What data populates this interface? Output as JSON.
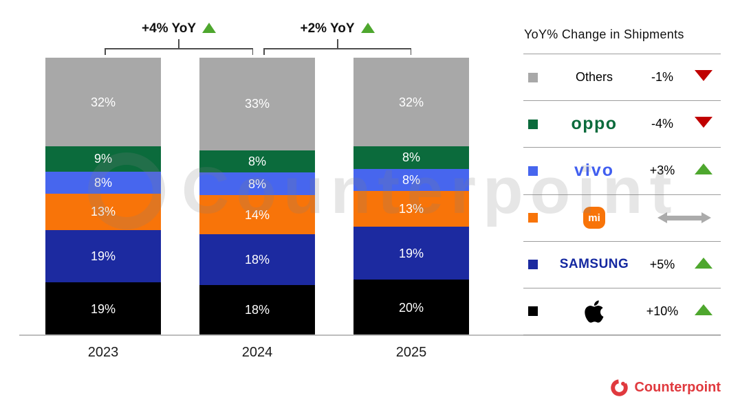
{
  "chart_data": {
    "type": "bar",
    "stacked": true,
    "unit": "%",
    "title": "",
    "categories": [
      "2023",
      "2024",
      "2025"
    ],
    "series_order": "bottom-to-top",
    "series": [
      {
        "name": "Apple",
        "color": "#000000",
        "values": [
          19,
          18,
          20
        ]
      },
      {
        "name": "SAMSUNG",
        "color": "#1c2aa0",
        "values": [
          19,
          18,
          19
        ]
      },
      {
        "name": "Mi",
        "color": "#f87409",
        "values": [
          13,
          14,
          13
        ]
      },
      {
        "name": "vivo",
        "color": "#4766ee",
        "values": [
          8,
          8,
          8
        ]
      },
      {
        "name": "oppo",
        "color": "#0b6b3c",
        "values": [
          9,
          8,
          8
        ]
      },
      {
        "name": "Others",
        "color": "#a8a8a8",
        "values": [
          32,
          33,
          32
        ]
      }
    ],
    "annotations": [
      {
        "label": "+4% YoY",
        "between": [
          "2023",
          "2024"
        ],
        "direction": "up"
      },
      {
        "label": "+2% YoY",
        "between": [
          "2024",
          "2025"
        ],
        "direction": "up"
      }
    ],
    "legend_position": "right",
    "grid": false
  },
  "legend": {
    "title": "YoY% Change in Shipments",
    "mi_badge_text": "mi",
    "rows": [
      {
        "name": "Others",
        "value": "-1%",
        "direction": "down"
      },
      {
        "name": "oppo",
        "value": "-4%",
        "direction": "down"
      },
      {
        "name": "vivo",
        "value": "+3%",
        "direction": "up"
      },
      {
        "name": "Mi",
        "value": "",
        "direction": "flat"
      },
      {
        "name": "SAMSUNG",
        "value": "+5%",
        "direction": "up"
      },
      {
        "name": "Apple",
        "value": "+10%",
        "direction": "up"
      }
    ]
  },
  "watermark": "Counterpoint",
  "footer": {
    "logo_text": "Counterpoint"
  },
  "colors": {
    "up_green": "#4ea72e",
    "down_red": "#c00000",
    "flat_gray": "#ababab",
    "brand_red": "#e0393e",
    "oppo": "#0b6b3c",
    "vivo": "#415ff0",
    "samsung": "#1428a0",
    "xiaomi": "#f87409"
  }
}
